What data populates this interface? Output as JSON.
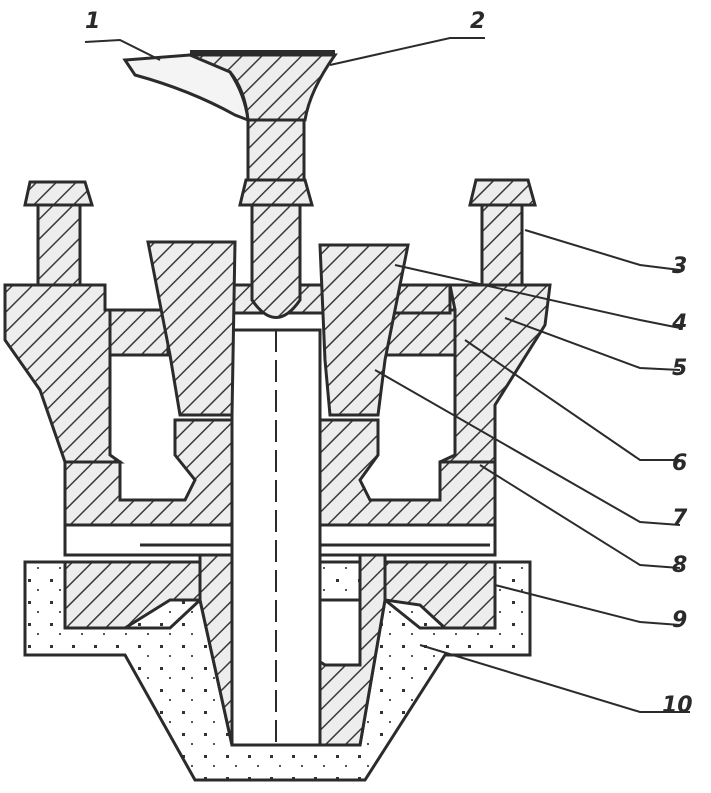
{
  "labels": {
    "n1": "1",
    "n2": "2",
    "n3": "3",
    "n4": "4",
    "n5": "5",
    "n6": "6",
    "n7": "7",
    "n8": "8",
    "n9": "9",
    "n10": "10"
  },
  "colors": {
    "ink": "#2b2b2b",
    "hatch": "#3a3a3a",
    "fill": "#ededed",
    "paper": "#ffffff"
  }
}
